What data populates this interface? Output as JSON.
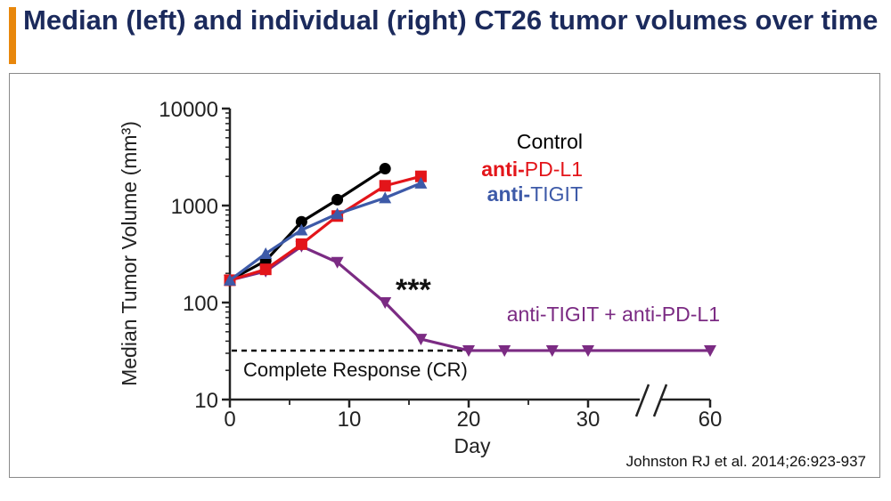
{
  "header": {
    "title": "Median (left) and individual (right) CT26 tumor volumes over time",
    "accent_color": "#e8870c",
    "title_color": "#1b2a5c"
  },
  "citation": "Johnston RJ et al. 2014;26:923-937",
  "chart_data": {
    "type": "line",
    "title": "",
    "xlabel": "Day",
    "ylabel": "Median Tumor Volume (mm³)",
    "yscale": "log",
    "ylim": [
      10,
      10000
    ],
    "yticks": [
      10,
      100,
      1000,
      10000
    ],
    "ytick_labels": [
      "10",
      "100",
      "1000",
      "10000"
    ],
    "xticks": [
      0,
      10,
      20,
      30,
      60
    ],
    "xtick_labels": [
      "0",
      "10",
      "20",
      "30",
      "60"
    ],
    "x_axis_break": "between 30 and 60",
    "annotations": {
      "significance": "***",
      "reference_line_label": "Complete Response (CR)",
      "reference_line_value": 32
    },
    "series": [
      {
        "name": "Control",
        "label_prefix": "",
        "label_suffix": "Control",
        "color": "#000000",
        "marker": "circle",
        "x": [
          0,
          3,
          6,
          9,
          13
        ],
        "values": [
          170,
          270,
          680,
          1150,
          2400
        ]
      },
      {
        "name": "anti-PD-L1",
        "label_prefix": "anti-",
        "label_suffix": "PD-L1",
        "color": "#e3151a",
        "marker": "square",
        "x": [
          0,
          3,
          6,
          9,
          13,
          16
        ],
        "values": [
          170,
          220,
          400,
          780,
          1600,
          2000
        ]
      },
      {
        "name": "anti-TIGIT",
        "label_prefix": "anti-",
        "label_suffix": "TIGIT",
        "color": "#3d5aa8",
        "marker": "triangle-up",
        "x": [
          0,
          3,
          6,
          9,
          13,
          16
        ],
        "values": [
          170,
          320,
          560,
          820,
          1200,
          1700
        ]
      },
      {
        "name": "anti-TIGIT + anti-PD-L1",
        "label_prefix": "",
        "label_suffix": "anti-TIGIT + anti-PD-L1",
        "color": "#7b2b83",
        "marker": "triangle-down",
        "x": [
          0,
          3,
          6,
          9,
          13,
          16,
          20,
          23,
          27,
          30,
          60
        ],
        "values": [
          170,
          210,
          380,
          260,
          100,
          42,
          32,
          32,
          32,
          32,
          32
        ]
      }
    ]
  }
}
